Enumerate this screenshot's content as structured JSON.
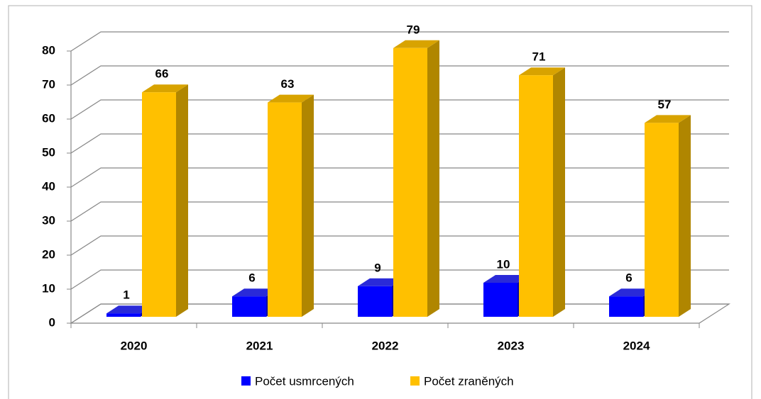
{
  "chart_data": {
    "type": "bar3d",
    "categories": [
      "2020",
      "2021",
      "2022",
      "2023",
      "2024"
    ],
    "series": [
      {
        "name": "Počet usmrcených",
        "color": "#0000ff",
        "side": "#0000a8",
        "top": "#2a2ad8",
        "values": [
          1,
          6,
          9,
          10,
          6
        ]
      },
      {
        "name": "Počet zraněných",
        "color": "#ffc000",
        "side": "#b08600",
        "top": "#d8a300",
        "values": [
          66,
          63,
          79,
          71,
          57
        ]
      }
    ],
    "ylim": [
      0,
      80
    ],
    "yticks": [
      0,
      10,
      20,
      30,
      40,
      50,
      60,
      70,
      80
    ],
    "grid": true,
    "legend": "bottom"
  }
}
